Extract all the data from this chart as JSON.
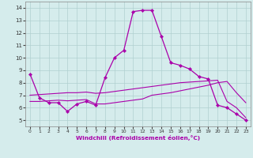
{
  "xlabel": "Windchill (Refroidissement éolien,°C)",
  "xlim": [
    -0.5,
    23.5
  ],
  "ylim": [
    4.5,
    14.5
  ],
  "yticks": [
    5,
    6,
    7,
    8,
    9,
    10,
    11,
    12,
    13,
    14
  ],
  "xticks": [
    0,
    1,
    2,
    3,
    4,
    5,
    6,
    7,
    8,
    9,
    10,
    11,
    12,
    13,
    14,
    15,
    16,
    17,
    18,
    19,
    20,
    21,
    22,
    23
  ],
  "bg_color": "#d5ecec",
  "line_color": "#aa00aa",
  "grid_color": "#b0d0d0",
  "line1_x": [
    0,
    1,
    2,
    3,
    4,
    5,
    6,
    7,
    8,
    9,
    10,
    11,
    12,
    13,
    14,
    15,
    16,
    17,
    18,
    19,
    20,
    21,
    22,
    23
  ],
  "line1_y": [
    8.7,
    6.8,
    6.4,
    6.4,
    5.7,
    6.3,
    6.5,
    6.2,
    8.4,
    10.0,
    10.6,
    13.7,
    13.8,
    13.8,
    11.7,
    9.6,
    9.4,
    9.1,
    8.5,
    8.3,
    6.2,
    6.0,
    5.5,
    5.0
  ],
  "line2_x": [
    0,
    1,
    2,
    3,
    4,
    5,
    6,
    7,
    8,
    9,
    10,
    11,
    12,
    13,
    14,
    15,
    16,
    17,
    18,
    19,
    20,
    21,
    22,
    23
  ],
  "line2_y": [
    6.5,
    6.5,
    6.55,
    6.6,
    6.55,
    6.6,
    6.65,
    6.3,
    6.3,
    6.4,
    6.5,
    6.6,
    6.7,
    7.0,
    7.1,
    7.2,
    7.35,
    7.5,
    7.65,
    7.8,
    8.0,
    8.1,
    7.2,
    6.4
  ],
  "line3_x": [
    0,
    1,
    2,
    3,
    4,
    5,
    6,
    7,
    8,
    9,
    10,
    11,
    12,
    13,
    14,
    15,
    16,
    17,
    18,
    19,
    20,
    21,
    22,
    23
  ],
  "line3_y": [
    7.0,
    7.05,
    7.1,
    7.15,
    7.2,
    7.2,
    7.25,
    7.15,
    7.2,
    7.3,
    7.4,
    7.5,
    7.6,
    7.7,
    7.8,
    7.9,
    8.0,
    8.05,
    8.1,
    8.15,
    8.2,
    6.5,
    6.0,
    5.2
  ]
}
